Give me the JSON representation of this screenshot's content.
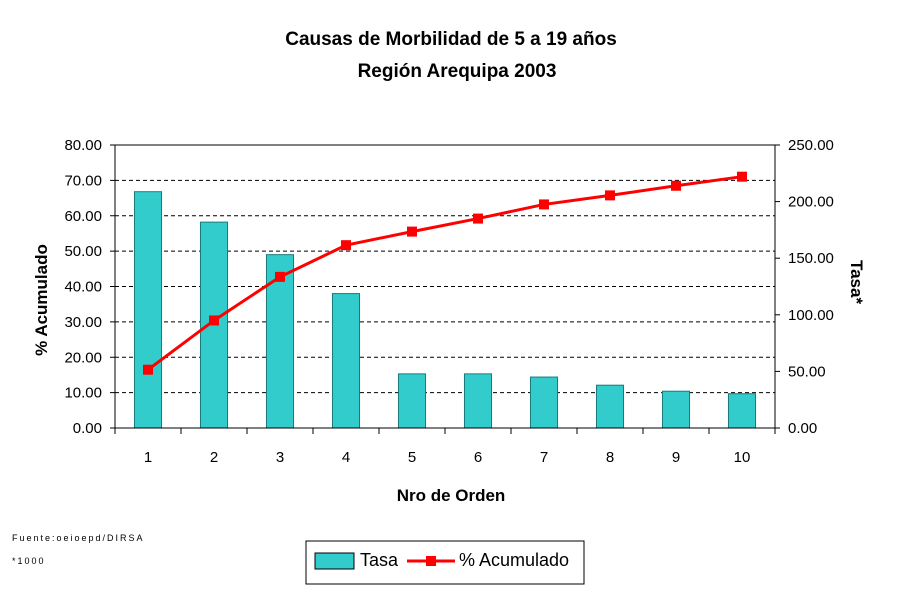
{
  "chart_data": {
    "type": "bar",
    "title": "Causas de Morbilidad de 5 a 19 años",
    "subtitle": "Región Arequipa 2003",
    "xlabel": "Nro de Orden",
    "ylabel_left": "% Acumulado",
    "ylabel_right": "Tasa*",
    "categories": [
      "1",
      "2",
      "3",
      "4",
      "5",
      "6",
      "7",
      "8",
      "9",
      "10"
    ],
    "ylim_left": [
      0,
      80
    ],
    "ylim_right": [
      0,
      250
    ],
    "yticks_left": [
      "0.00",
      "10.00",
      "20.00",
      "30.00",
      "40.00",
      "50.00",
      "60.00",
      "70.00",
      "80.00"
    ],
    "yticks_right": [
      "0.00",
      "50.00",
      "100.00",
      "150.00",
      "200.00",
      "250.00"
    ],
    "grid": true,
    "legend_position": "bottom",
    "series": [
      {
        "name": "Tasa",
        "type": "bar",
        "axis": "left",
        "color": "#33CCCC",
        "values": [
          66.8,
          58.2,
          49.0,
          38.0,
          15.3,
          15.3,
          14.4,
          12.1,
          10.4,
          9.7
        ]
      },
      {
        "name": "% Acumulado",
        "type": "line",
        "axis": "right",
        "color": "#FF0000",
        "values": [
          51.5,
          95.0,
          133.5,
          161.5,
          173.5,
          185.0,
          197.5,
          205.5,
          214.0,
          222.0
        ]
      }
    ]
  },
  "footnotes": {
    "source": "Fuente:oeioepd/DIRSA",
    "unit": "*1000"
  }
}
